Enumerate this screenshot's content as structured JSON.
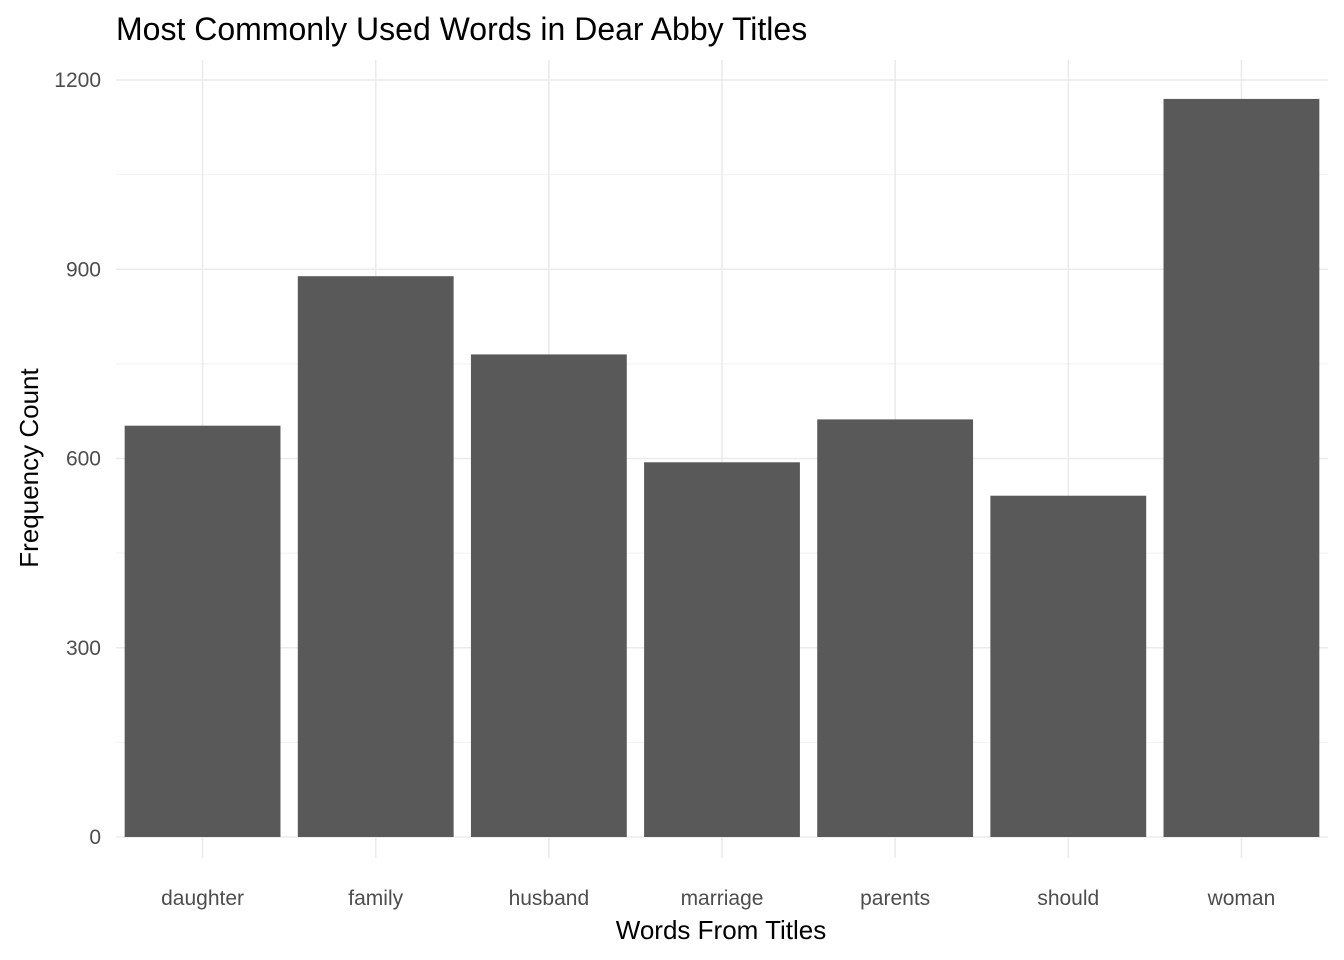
{
  "chart_data": {
    "type": "bar",
    "title": "Most Commonly Used Words in Dear Abby Titles",
    "xlabel": "Words From Titles",
    "ylabel": "Frequency Count",
    "categories": [
      "daughter",
      "family",
      "husband",
      "marriage",
      "parents",
      "should",
      "woman"
    ],
    "values": [
      652,
      889,
      765,
      594,
      662,
      541,
      1170
    ],
    "ylim": [
      0,
      1200
    ],
    "yticks": [
      0,
      300,
      600,
      900,
      1200
    ],
    "ytick_labels": [
      "0",
      "300",
      "600",
      "900",
      "1200"
    ],
    "grid": true,
    "bar_color": "#595959",
    "grid_color": "#ebebeb"
  }
}
